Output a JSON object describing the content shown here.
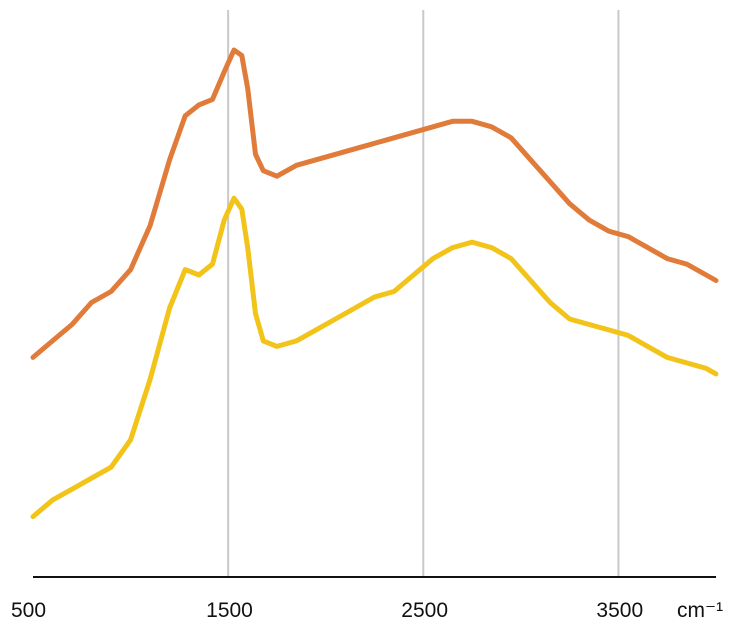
{
  "chart_data": {
    "type": "line",
    "title": "",
    "xlabel": "",
    "ylabel": "",
    "x_unit": "cm⁻¹",
    "xlim": [
      500,
      4000
    ],
    "ylim": [
      0,
      100
    ],
    "x_ticks": [
      500,
      1500,
      2500,
      3500
    ],
    "x_tick_labels": [
      "500",
      "1500",
      "2500",
      "3500"
    ],
    "vertical_gridlines": [
      1500,
      2500,
      3500
    ],
    "grid": "vertical",
    "legend": "none",
    "series": [
      {
        "color": "#e07b39",
        "points": [
          [
            500,
            40
          ],
          [
            600,
            43
          ],
          [
            700,
            46
          ],
          [
            800,
            50
          ],
          [
            900,
            52
          ],
          [
            1000,
            56
          ],
          [
            1100,
            64
          ],
          [
            1200,
            76
          ],
          [
            1280,
            84
          ],
          [
            1350,
            86
          ],
          [
            1420,
            87
          ],
          [
            1480,
            92
          ],
          [
            1530,
            96
          ],
          [
            1570,
            95
          ],
          [
            1600,
            89
          ],
          [
            1640,
            77
          ],
          [
            1680,
            74
          ],
          [
            1750,
            73
          ],
          [
            1850,
            75
          ],
          [
            1950,
            76
          ],
          [
            2050,
            77
          ],
          [
            2150,
            78
          ],
          [
            2250,
            79
          ],
          [
            2350,
            80
          ],
          [
            2450,
            81
          ],
          [
            2550,
            82
          ],
          [
            2650,
            83
          ],
          [
            2750,
            83
          ],
          [
            2850,
            82
          ],
          [
            2950,
            80
          ],
          [
            3050,
            76
          ],
          [
            3150,
            72
          ],
          [
            3250,
            68
          ],
          [
            3350,
            65
          ],
          [
            3450,
            63
          ],
          [
            3550,
            62
          ],
          [
            3650,
            60
          ],
          [
            3750,
            58
          ],
          [
            3850,
            57
          ],
          [
            3950,
            55
          ],
          [
            4000,
            54
          ]
        ]
      },
      {
        "color": "#f2c318",
        "points": [
          [
            500,
            11
          ],
          [
            600,
            14
          ],
          [
            700,
            16
          ],
          [
            800,
            18
          ],
          [
            900,
            20
          ],
          [
            1000,
            25
          ],
          [
            1100,
            36
          ],
          [
            1200,
            49
          ],
          [
            1280,
            56
          ],
          [
            1350,
            55
          ],
          [
            1420,
            57
          ],
          [
            1480,
            65
          ],
          [
            1530,
            69
          ],
          [
            1570,
            67
          ],
          [
            1600,
            60
          ],
          [
            1640,
            48
          ],
          [
            1680,
            43
          ],
          [
            1750,
            42
          ],
          [
            1850,
            43
          ],
          [
            1950,
            45
          ],
          [
            2050,
            47
          ],
          [
            2150,
            49
          ],
          [
            2250,
            51
          ],
          [
            2350,
            52
          ],
          [
            2450,
            55
          ],
          [
            2550,
            58
          ],
          [
            2650,
            60
          ],
          [
            2750,
            61
          ],
          [
            2850,
            60
          ],
          [
            2950,
            58
          ],
          [
            3050,
            54
          ],
          [
            3150,
            50
          ],
          [
            3250,
            47
          ],
          [
            3350,
            46
          ],
          [
            3450,
            45
          ],
          [
            3550,
            44
          ],
          [
            3650,
            42
          ],
          [
            3750,
            40
          ],
          [
            3850,
            39
          ],
          [
            3950,
            38
          ],
          [
            4000,
            37
          ]
        ]
      }
    ]
  }
}
